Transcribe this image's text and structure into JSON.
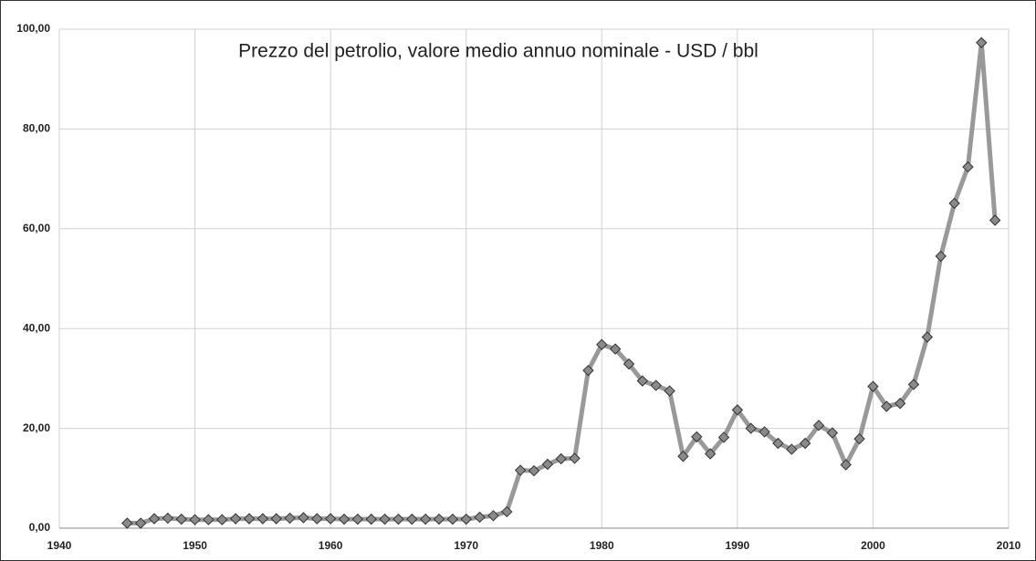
{
  "chart_data": {
    "type": "line",
    "title": "Prezzo del petrolio, valore medio annuo nominale - USD / bbl",
    "x": [
      1945,
      1946,
      1947,
      1948,
      1949,
      1950,
      1951,
      1952,
      1953,
      1954,
      1955,
      1956,
      1957,
      1958,
      1959,
      1960,
      1961,
      1962,
      1963,
      1964,
      1965,
      1966,
      1967,
      1968,
      1969,
      1970,
      1971,
      1972,
      1973,
      1974,
      1975,
      1976,
      1977,
      1978,
      1979,
      1980,
      1981,
      1982,
      1983,
      1984,
      1985,
      1986,
      1987,
      1988,
      1989,
      1990,
      1991,
      1992,
      1993,
      1994,
      1995,
      1996,
      1997,
      1998,
      1999,
      2000,
      2001,
      2002,
      2003,
      2004,
      2005,
      2006,
      2007,
      2008,
      2009
    ],
    "series": [
      {
        "color": "#999999",
        "values": [
          1.0,
          1.0,
          1.9,
          2.0,
          1.8,
          1.7,
          1.7,
          1.7,
          1.9,
          1.9,
          1.9,
          1.9,
          2.0,
          2.1,
          1.9,
          1.9,
          1.8,
          1.8,
          1.8,
          1.8,
          1.8,
          1.8,
          1.8,
          1.8,
          1.8,
          1.8,
          2.2,
          2.5,
          3.3,
          11.6,
          11.5,
          12.8,
          13.9,
          14.0,
          31.6,
          36.8,
          35.9,
          32.9,
          29.5,
          28.6,
          27.5,
          14.4,
          18.3,
          14.9,
          18.2,
          23.7,
          20.0,
          19.3,
          17.0,
          15.8,
          17.0,
          20.6,
          19.1,
          12.7,
          17.9,
          28.4,
          24.4,
          25.0,
          28.8,
          38.3,
          54.5,
          65.1,
          72.4,
          97.3,
          61.7
        ]
      }
    ],
    "marker_color": "#8a8a8a",
    "xlim": [
      1940,
      2010
    ],
    "xticks": [
      1940,
      1950,
      1960,
      1970,
      1980,
      1990,
      2000,
      2010
    ],
    "ylim": [
      0,
      100
    ],
    "yticks": [
      {
        "value": 0,
        "label": "0,00"
      },
      {
        "value": 20,
        "label": "20,00"
      },
      {
        "value": 40,
        "label": "40,00"
      },
      {
        "value": 60,
        "label": "60,00"
      },
      {
        "value": 80,
        "label": "80,00"
      },
      {
        "value": 100,
        "label": "100,00"
      }
    ],
    "grid": true
  }
}
